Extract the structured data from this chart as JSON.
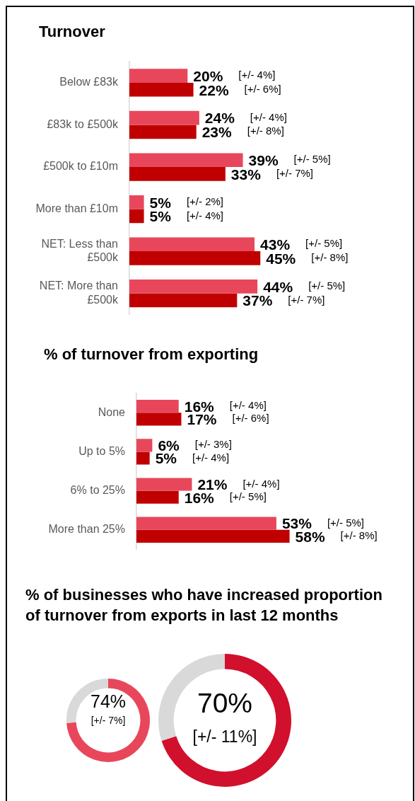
{
  "chart_data": [
    {
      "type": "bar",
      "orientation": "horizontal",
      "title": "Turnover",
      "categories": [
        "Below £83k",
        "£83k to £500k",
        "£500k to £10m",
        "More than £10m",
        "NET: Less than £500k",
        "NET: More than £500k"
      ],
      "series": [
        {
          "color": "#e8475b",
          "values": [
            20,
            24,
            39,
            5,
            43,
            44
          ],
          "value_labels": [
            "20%",
            "24%",
            "39%",
            "5%",
            "43%",
            "44%"
          ]
        },
        {
          "color": "#c00000",
          "values": [
            22,
            23,
            33,
            5,
            45,
            37
          ],
          "value_labels": [
            "22%",
            "23%",
            "33%",
            "5%",
            "45%",
            "37%"
          ]
        }
      ],
      "annotations": [
        "[+/- 4%]",
        "[+/- 6%]",
        "[+/- 4%]",
        "[+/- 8%]",
        "[+/- 5%]",
        "[+/- 7%]",
        "[+/- 2%]",
        "[+/- 4%]",
        "[+/- 5%]",
        "[+/- 8%]",
        "[+/- 5%]",
        "[+/- 7%]"
      ]
    },
    {
      "type": "bar",
      "orientation": "horizontal",
      "title": "% of turnover from exporting",
      "categories": [
        "None",
        "Up to 5%",
        "6% to 25%",
        "More than 25%"
      ],
      "series": [
        {
          "color": "#e8475b",
          "values": [
            16,
            6,
            21,
            53
          ],
          "value_labels": [
            "16%",
            "6%",
            "21%",
            "53%"
          ]
        },
        {
          "color": "#c00000",
          "values": [
            17,
            5,
            16,
            58
          ],
          "value_labels": [
            "17%",
            "5%",
            "16%",
            "58%"
          ]
        }
      ],
      "annotations": [
        "[+/- 4%]",
        "[+/- 6%]",
        "[+/- 3%]",
        "[+/- 4%]",
        "[+/- 4%]",
        "[+/- 5%]",
        "[+/- 5%]",
        "[+/- 8%]"
      ]
    },
    {
      "type": "donut",
      "title": "% of businesses who have increased proportion of turnover from exports in last 12 months",
      "categories": [
        null,
        null
      ],
      "values": [
        74,
        26
      ],
      "colors": [
        "#e8475b",
        "#d9d9d9"
      ],
      "value_labels": [
        "74%",
        null
      ],
      "annotations": [
        "[+/- 7%]"
      ]
    },
    {
      "type": "donut",
      "categories": [
        null,
        null
      ],
      "values": [
        70,
        30
      ],
      "colors": [
        "#d0102c",
        "#d9d9d9"
      ],
      "value_labels": [
        "70%",
        null
      ],
      "annotations": [
        "[+/- 11%]"
      ]
    }
  ]
}
